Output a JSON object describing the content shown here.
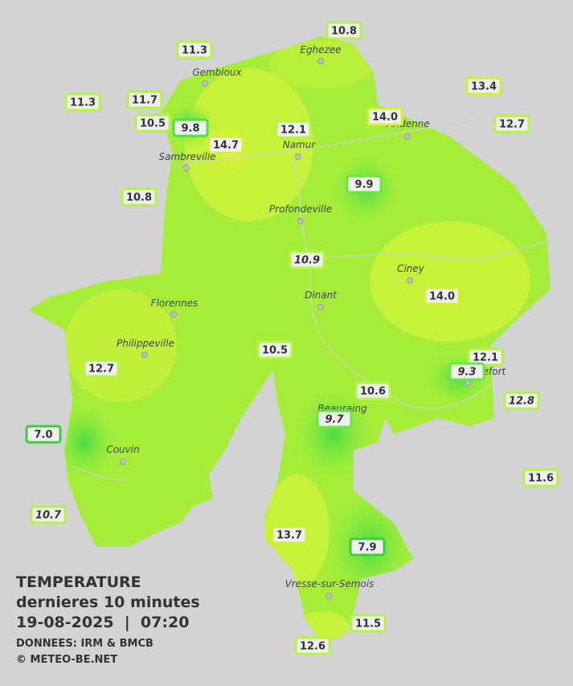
{
  "legend": {
    "title": "TEMPERATURE",
    "subtitle": "dernieres 10 minutes",
    "timestamp": "19-08-2025  |  07:20",
    "source": "DONNEES: IRM & BMCB",
    "credit": "© METEO-BE.NET"
  },
  "towns": [
    {
      "name": "Eghezee"
    },
    {
      "name": "Gembloux"
    },
    {
      "name": "Andenne"
    },
    {
      "name": "Namur"
    },
    {
      "name": "Sambreville"
    },
    {
      "name": "Profondeville"
    },
    {
      "name": "Ciney"
    },
    {
      "name": "Dinant"
    },
    {
      "name": "Florennes"
    },
    {
      "name": "Philippeville"
    },
    {
      "name": "Rochefort"
    },
    {
      "name": "Beauraing"
    },
    {
      "name": "Couvin"
    },
    {
      "name": "Vresse-sur-Semois"
    }
  ],
  "stations": [
    {
      "label": "10.8",
      "italic": false,
      "border": "#b2f542"
    },
    {
      "label": "11.3",
      "italic": false,
      "border": "#b2f542"
    },
    {
      "label": "11.3",
      "italic": false,
      "border": "#b2f542"
    },
    {
      "label": "11.7",
      "italic": false,
      "border": "#b2f542"
    },
    {
      "label": "10.5",
      "italic": false,
      "border": "#b2f542"
    },
    {
      "label": "9.8",
      "italic": false,
      "border": "#4ce04c"
    },
    {
      "label": "14.7",
      "italic": false,
      "border": "#d8f030"
    },
    {
      "label": "12.1",
      "italic": false,
      "border": "#b2f542"
    },
    {
      "label": "14.0",
      "italic": false,
      "border": "#d8f030"
    },
    {
      "label": "13.4",
      "italic": false,
      "border": "#c8f236"
    },
    {
      "label": "12.7",
      "italic": false,
      "border": "#b2f542"
    },
    {
      "label": "9.9",
      "italic": false,
      "border": "#66e844"
    },
    {
      "label": "10.8",
      "italic": false,
      "border": "#b2f542"
    },
    {
      "label": "10.9",
      "italic": true,
      "border": "#b2f542"
    },
    {
      "label": "14.0",
      "italic": false,
      "border": "#d8f030"
    },
    {
      "label": "10.5",
      "italic": false,
      "border": "#b2f542"
    },
    {
      "label": "12.7",
      "italic": false,
      "border": "#b2f542"
    },
    {
      "label": "12.1",
      "italic": false,
      "border": "#b2f542"
    },
    {
      "label": "9.3",
      "italic": true,
      "border": "#66e844"
    },
    {
      "label": "12.8",
      "italic": true,
      "border": "#b2f542"
    },
    {
      "label": "10.6",
      "italic": false,
      "border": "#b2f542"
    },
    {
      "label": "9.7",
      "italic": true,
      "border": "#66e844"
    },
    {
      "label": "7.0",
      "italic": false,
      "border": "#3ccc3c"
    },
    {
      "label": "11.6",
      "italic": false,
      "border": "#b2f542"
    },
    {
      "label": "10.7",
      "italic": true,
      "border": "#b2f542"
    },
    {
      "label": "13.7",
      "italic": false,
      "border": "#c8f236"
    },
    {
      "label": "7.9",
      "italic": false,
      "border": "#3ccc3c"
    },
    {
      "label": "11.5",
      "italic": false,
      "border": "#b2f542"
    },
    {
      "label": "12.6",
      "italic": false,
      "border": "#b2f542"
    }
  ]
}
